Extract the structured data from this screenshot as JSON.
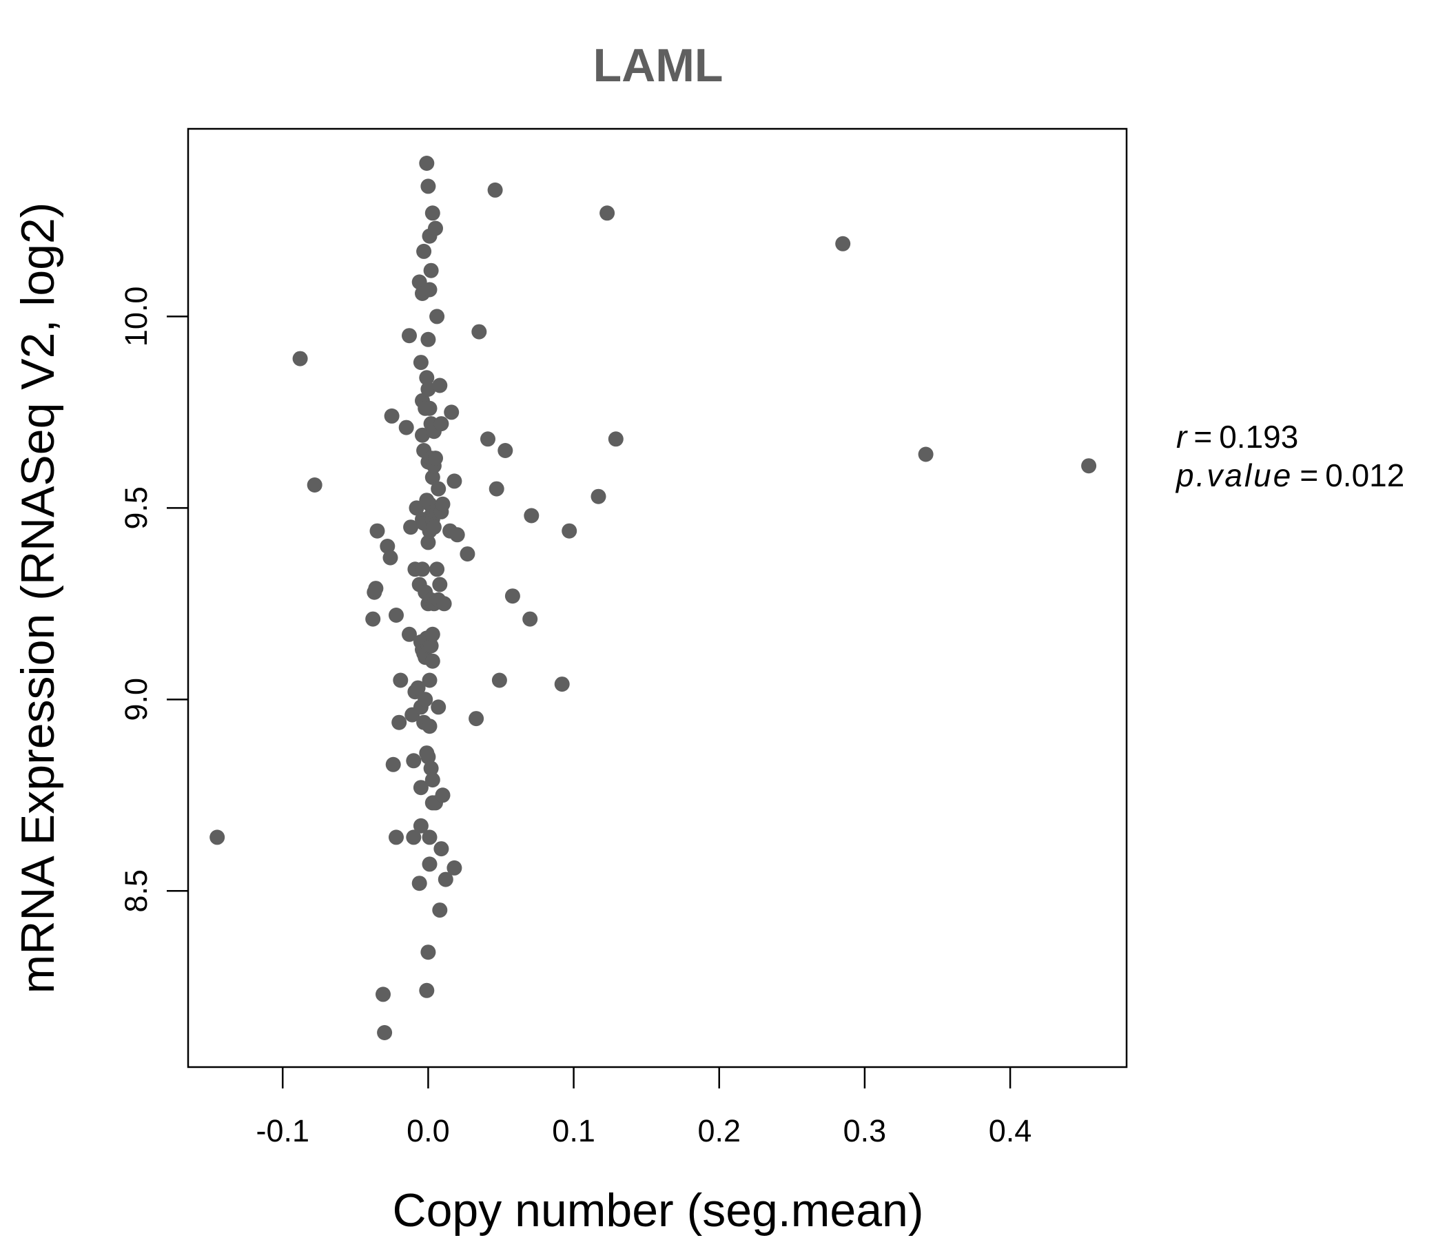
{
  "chart_data": {
    "type": "scatter",
    "title": "LAML",
    "xlabel": "Copy number (seg.mean)",
    "ylabel": "mRNA Expression (RNASeq V2, log2)",
    "xlim": [
      -0.165,
      0.48
    ],
    "ylim": [
      8.04,
      10.49
    ],
    "x_ticks": [
      -0.1,
      0.0,
      0.1,
      0.2,
      0.3,
      0.4
    ],
    "x_tick_labels": [
      "-0.1",
      "0.0",
      "0.1",
      "0.2",
      "0.3",
      "0.4"
    ],
    "y_ticks": [
      8.5,
      9.0,
      9.5,
      10.0
    ],
    "y_tick_labels": [
      "8.5",
      "9.0",
      "9.5",
      "10.0"
    ],
    "grid": false,
    "point_color": "#5f5f5f",
    "title_color": "#5f5f5f",
    "stats": {
      "r_label": "r",
      "r_value": "0.193",
      "p_label": "p.value",
      "p_value": "0.012"
    },
    "points": [
      [
        -0.145,
        8.64
      ],
      [
        -0.088,
        9.89
      ],
      [
        -0.078,
        9.56
      ],
      [
        -0.038,
        9.21
      ],
      [
        -0.037,
        9.28
      ],
      [
        -0.036,
        9.29
      ],
      [
        -0.035,
        9.44
      ],
      [
        -0.031,
        8.23
      ],
      [
        -0.03,
        8.13
      ],
      [
        -0.028,
        9.4
      ],
      [
        -0.026,
        9.37
      ],
      [
        -0.025,
        9.74
      ],
      [
        -0.024,
        8.83
      ],
      [
        -0.022,
        9.22
      ],
      [
        -0.022,
        8.64
      ],
      [
        -0.02,
        8.94
      ],
      [
        -0.019,
        9.05
      ],
      [
        -0.015,
        9.71
      ],
      [
        -0.013,
        9.95
      ],
      [
        -0.013,
        9.17
      ],
      [
        -0.012,
        9.45
      ],
      [
        -0.011,
        8.96
      ],
      [
        -0.01,
        8.84
      ],
      [
        -0.01,
        8.64
      ],
      [
        -0.009,
        9.34
      ],
      [
        -0.009,
        9.02
      ],
      [
        -0.008,
        9.5
      ],
      [
        -0.007,
        9.03
      ],
      [
        -0.006,
        9.3
      ],
      [
        -0.006,
        8.52
      ],
      [
        -0.006,
        10.09
      ],
      [
        -0.005,
        9.88
      ],
      [
        -0.005,
        9.15
      ],
      [
        -0.005,
        8.98
      ],
      [
        -0.005,
        8.67
      ],
      [
        -0.005,
        8.77
      ],
      [
        -0.004,
        10.06
      ],
      [
        -0.004,
        9.78
      ],
      [
        -0.004,
        9.69
      ],
      [
        -0.004,
        9.47
      ],
      [
        -0.004,
        9.34
      ],
      [
        -0.004,
        9.13
      ],
      [
        -0.003,
        10.17
      ],
      [
        -0.003,
        9.65
      ],
      [
        -0.003,
        9.46
      ],
      [
        -0.003,
        9.12
      ],
      [
        -0.003,
        8.94
      ],
      [
        -0.002,
        9.76
      ],
      [
        -0.002,
        9.28
      ],
      [
        -0.002,
        9.11
      ],
      [
        -0.002,
        9.0
      ],
      [
        -0.001,
        10.4
      ],
      [
        -0.001,
        9.84
      ],
      [
        -0.001,
        9.52
      ],
      [
        -0.001,
        9.16
      ],
      [
        -0.001,
        8.86
      ],
      [
        -0.001,
        8.24
      ],
      [
        0.0,
        10.34
      ],
      [
        0.0,
        9.94
      ],
      [
        0.0,
        9.81
      ],
      [
        0.0,
        9.62
      ],
      [
        0.0,
        9.41
      ],
      [
        0.0,
        9.25
      ],
      [
        0.0,
        9.14
      ],
      [
        0.0,
        8.85
      ],
      [
        0.0,
        8.34
      ],
      [
        0.001,
        10.21
      ],
      [
        0.001,
        10.07
      ],
      [
        0.001,
        9.76
      ],
      [
        0.001,
        9.51
      ],
      [
        0.001,
        9.44
      ],
      [
        0.001,
        9.15
      ],
      [
        0.001,
        9.05
      ],
      [
        0.001,
        8.93
      ],
      [
        0.001,
        8.64
      ],
      [
        0.001,
        8.57
      ],
      [
        0.002,
        10.12
      ],
      [
        0.002,
        9.72
      ],
      [
        0.002,
        9.63
      ],
      [
        0.002,
        9.48
      ],
      [
        0.002,
        9.26
      ],
      [
        0.002,
        9.14
      ],
      [
        0.002,
        8.82
      ],
      [
        0.003,
        10.27
      ],
      [
        0.003,
        9.58
      ],
      [
        0.003,
        9.47
      ],
      [
        0.003,
        9.17
      ],
      [
        0.003,
        9.1
      ],
      [
        0.003,
        8.79
      ],
      [
        0.003,
        8.73
      ],
      [
        0.004,
        9.7
      ],
      [
        0.004,
        9.61
      ],
      [
        0.004,
        9.49
      ],
      [
        0.004,
        9.45
      ],
      [
        0.004,
        9.25
      ],
      [
        0.005,
        10.23
      ],
      [
        0.005,
        9.63
      ],
      [
        0.005,
        8.73
      ],
      [
        0.006,
        10.0
      ],
      [
        0.006,
        9.34
      ],
      [
        0.006,
        9.49
      ],
      [
        0.007,
        9.55
      ],
      [
        0.007,
        9.26
      ],
      [
        0.007,
        8.98
      ],
      [
        0.008,
        9.82
      ],
      [
        0.008,
        9.3
      ],
      [
        0.008,
        8.45
      ],
      [
        0.009,
        9.72
      ],
      [
        0.009,
        9.49
      ],
      [
        0.009,
        8.61
      ],
      [
        0.01,
        8.75
      ],
      [
        0.01,
        9.51
      ],
      [
        0.011,
        9.25
      ],
      [
        0.012,
        8.53
      ],
      [
        0.015,
        9.44
      ],
      [
        0.016,
        9.75
      ],
      [
        0.018,
        9.57
      ],
      [
        0.018,
        8.56
      ],
      [
        0.02,
        9.43
      ],
      [
        0.027,
        9.38
      ],
      [
        0.033,
        8.95
      ],
      [
        0.035,
        9.96
      ],
      [
        0.041,
        9.68
      ],
      [
        0.046,
        10.33
      ],
      [
        0.047,
        9.55
      ],
      [
        0.049,
        9.05
      ],
      [
        0.053,
        9.65
      ],
      [
        0.058,
        9.27
      ],
      [
        0.07,
        9.21
      ],
      [
        0.071,
        9.48
      ],
      [
        0.092,
        9.04
      ],
      [
        0.097,
        9.44
      ],
      [
        0.117,
        9.53
      ],
      [
        0.123,
        10.27
      ],
      [
        0.129,
        9.68
      ],
      [
        0.285,
        10.19
      ],
      [
        0.342,
        9.64
      ],
      [
        0.454,
        9.61
      ]
    ]
  }
}
